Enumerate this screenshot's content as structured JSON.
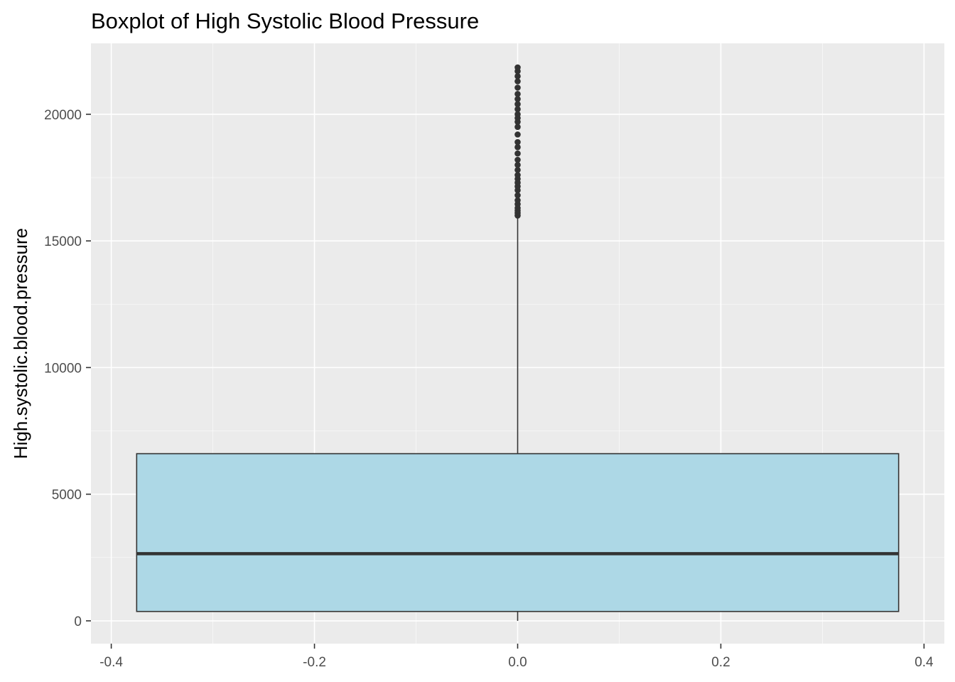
{
  "chart_data": {
    "type": "boxplot",
    "title": "Boxplot of High Systolic Blood Pressure",
    "xlabel": "",
    "ylabel": "High.systolic.blood.pressure",
    "xlim": [
      -0.42,
      0.42
    ],
    "ylim": [
      -900,
      22800
    ],
    "x_ticks": [
      {
        "value": -0.4,
        "label": "-0.4"
      },
      {
        "value": -0.2,
        "label": "-0.2"
      },
      {
        "value": 0.0,
        "label": "0.0"
      },
      {
        "value": 0.2,
        "label": "0.2"
      },
      {
        "value": 0.4,
        "label": "0.4"
      }
    ],
    "x_minor": [
      -0.3,
      -0.1,
      0.1,
      0.3
    ],
    "y_ticks": [
      {
        "value": 0,
        "label": "0"
      },
      {
        "value": 5000,
        "label": "5000"
      },
      {
        "value": 10000,
        "label": "10000"
      },
      {
        "value": 15000,
        "label": "15000"
      },
      {
        "value": 20000,
        "label": "20000"
      }
    ],
    "y_minor": [
      2500,
      7500,
      12500,
      17500
    ],
    "grid": true,
    "box": {
      "x": 0,
      "xmin": -0.375,
      "xmax": 0.375,
      "whisker_low": 0,
      "q1": 370,
      "median": 2650,
      "q3": 6600,
      "whisker_high": 16000
    },
    "outliers": [
      16000,
      16100,
      16200,
      16300,
      16450,
      16600,
      16800,
      17000,
      17150,
      17300,
      17450,
      17600,
      17800,
      18000,
      18200,
      18450,
      18700,
      18900,
      19200,
      19500,
      19700,
      19850,
      20000,
      20200,
      20400,
      20600,
      20800,
      21050,
      21300,
      21500,
      21700,
      21850
    ],
    "colors": {
      "panel": "#ebebeb",
      "grid_major": "#ffffff",
      "box_fill": "#add8e6",
      "box_line": "#333333",
      "outlier": "#333333",
      "tick_text": "#4d4d4d"
    }
  }
}
